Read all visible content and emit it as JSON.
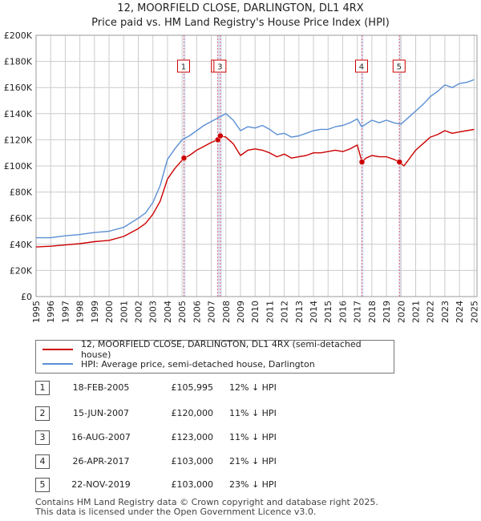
{
  "title": {
    "line1": "12, MOORFIELD CLOSE, DARLINGTON, DL1 4RX",
    "line2": "Price paid vs. HM Land Registry's House Price Index (HPI)"
  },
  "legend": {
    "red_label": "12, MOORFIELD CLOSE, DARLINGTON, DL1 4RX (semi-detached house)",
    "blue_label": "HPI: Average price, semi-detached house, Darlington"
  },
  "transactions": [
    {
      "num": "1",
      "date": "18-FEB-2005",
      "price": "£105,995",
      "hpi": "12% ↓ HPI"
    },
    {
      "num": "2",
      "date": "15-JUN-2007",
      "price": "£120,000",
      "hpi": "11% ↓ HPI"
    },
    {
      "num": "3",
      "date": "16-AUG-2007",
      "price": "£123,000",
      "hpi": "11% ↓ HPI"
    },
    {
      "num": "4",
      "date": "26-APR-2017",
      "price": "£103,000",
      "hpi": "21% ↓ HPI"
    },
    {
      "num": "5",
      "date": "22-NOV-2019",
      "price": "£103,000",
      "hpi": "23% ↓ HPI"
    }
  ],
  "footer": {
    "line1": "Contains HM Land Registry data © Crown copyright and database right 2025.",
    "line2": "This data is licensed under the Open Government Licence v3.0."
  },
  "colors": {
    "price_line": "#cc0000",
    "hpi_line": "#5b8fd4",
    "marker_line": "#e06070",
    "band": "#dde6f5"
  },
  "chart_data": {
    "type": "line",
    "title": "Price paid vs. HM Land Registry's House Price Index (HPI)",
    "xlim": [
      1995,
      2025.2
    ],
    "ylim": [
      0,
      200000
    ],
    "yticks": [
      0,
      20000,
      40000,
      60000,
      80000,
      100000,
      120000,
      140000,
      160000,
      180000,
      200000
    ],
    "ytick_labels": [
      "£0",
      "£20K",
      "£40K",
      "£60K",
      "£80K",
      "£100K",
      "£120K",
      "£140K",
      "£160K",
      "£180K",
      "£200K"
    ],
    "xticks": [
      "1995",
      "1996",
      "1997",
      "1998",
      "1999",
      "2000",
      "2001",
      "2002",
      "2003",
      "2004",
      "2005",
      "2006",
      "2007",
      "2008",
      "2009",
      "2010",
      "2011",
      "2012",
      "2013",
      "2014",
      "2015",
      "2016",
      "2017",
      "2018",
      "2019",
      "2020",
      "2021",
      "2022",
      "2023",
      "2024",
      "2025"
    ],
    "grid": true,
    "series": [
      {
        "name": "HPI: Average price, semi-detached house, Darlington",
        "x": [
          1995,
          1996,
          1997,
          1998,
          1999,
          2000,
          2001,
          2002,
          2002.5,
          2003,
          2003.5,
          2004,
          2004.5,
          2005,
          2005.5,
          2006,
          2006.5,
          2007,
          2007.5,
          2008,
          2008.5,
          2009,
          2009.5,
          2010,
          2010.5,
          2011,
          2011.5,
          2012,
          2012.5,
          2013,
          2013.5,
          2014,
          2014.5,
          2015,
          2015.5,
          2016,
          2016.5,
          2017,
          2017.3,
          2017.6,
          2018,
          2018.5,
          2019,
          2019.5,
          2020,
          2020.5,
          2021,
          2021.5,
          2022,
          2022.5,
          2023,
          2023.5,
          2024,
          2024.5,
          2025
        ],
        "values": [
          45000,
          45000,
          46500,
          47500,
          49000,
          50000,
          53000,
          60000,
          64000,
          72000,
          85000,
          105000,
          113000,
          120000,
          123000,
          127000,
          131000,
          134000,
          137000,
          140000,
          135000,
          127000,
          130000,
          129000,
          131000,
          128000,
          124000,
          125000,
          122000,
          123000,
          125000,
          127000,
          128000,
          128000,
          130000,
          131000,
          133000,
          136000,
          130000,
          132000,
          135000,
          133000,
          135000,
          133000,
          132000,
          137000,
          142000,
          147000,
          153000,
          157000,
          162000,
          160000,
          163000,
          164000,
          166000
        ]
      },
      {
        "name": "12, MOORFIELD CLOSE, DARLINGTON, DL1 4RX (semi-detached house)",
        "x": [
          1995,
          1996,
          1997,
          1998,
          1999,
          2000,
          2001,
          2002,
          2002.5,
          2003,
          2003.5,
          2004,
          2004.5,
          2005.13,
          2005.5,
          2006,
          2006.5,
          2007,
          2007.45,
          2007.62,
          2008,
          2008.5,
          2009,
          2009.5,
          2010,
          2010.5,
          2011,
          2011.5,
          2012,
          2012.5,
          2013,
          2013.5,
          2014,
          2014.5,
          2015,
          2015.5,
          2016,
          2016.5,
          2017,
          2017.32,
          2017.6,
          2018,
          2018.5,
          2019,
          2019.5,
          2019.89,
          2020.2,
          2020.6,
          2021,
          2021.5,
          2022,
          2022.5,
          2023,
          2023.5,
          2024,
          2024.5,
          2025
        ],
        "values": [
          38000,
          38500,
          39500,
          40500,
          42000,
          43000,
          46000,
          52000,
          56000,
          63000,
          73000,
          90000,
          98000,
          105995,
          108000,
          112000,
          115000,
          118000,
          120000,
          123000,
          122000,
          117000,
          108000,
          112000,
          113000,
          112000,
          110000,
          107000,
          109000,
          106000,
          107000,
          108000,
          110000,
          110000,
          111000,
          112000,
          111000,
          113000,
          116000,
          103000,
          106000,
          108000,
          107000,
          107000,
          105000,
          103000,
          100000,
          106000,
          112000,
          117000,
          122000,
          124000,
          127000,
          125000,
          126000,
          127000,
          128000
        ]
      }
    ],
    "sales": [
      {
        "label": "1",
        "x": 2005.13,
        "value": 105995
      },
      {
        "label": "2",
        "x": 2007.45,
        "value": 120000
      },
      {
        "label": "3",
        "x": 2007.62,
        "value": 123000
      },
      {
        "label": "4",
        "x": 2017.32,
        "value": 103000
      },
      {
        "label": "5",
        "x": 2019.89,
        "value": 103000
      }
    ]
  }
}
